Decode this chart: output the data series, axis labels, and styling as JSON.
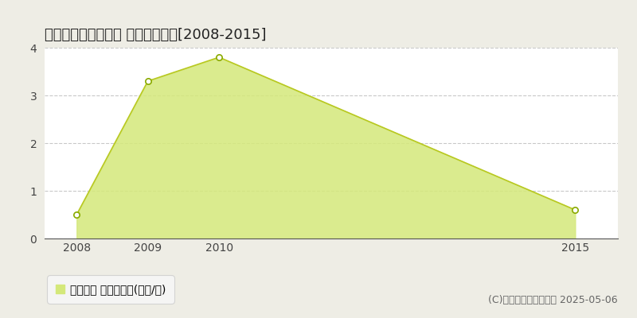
{
  "title": "薩摩郡さつま町二渡 土地価格推移[2008-2015]",
  "years": [
    2008,
    2009,
    2010,
    2015
  ],
  "values": [
    0.5,
    3.3,
    3.8,
    0.6
  ],
  "line_color": "#b8c820",
  "fill_color": "#d4e87a",
  "fill_alpha": 0.85,
  "marker_facecolor": "#ffffff",
  "marker_edgecolor": "#8aaa00",
  "marker_size": 28,
  "ylim": [
    0,
    4
  ],
  "yticks": [
    0,
    1,
    2,
    3,
    4
  ],
  "xlim_min": 2007.55,
  "xlim_max": 2015.6,
  "xticks": [
    2008,
    2009,
    2010,
    2015
  ],
  "background_color": "#eeede5",
  "plot_bg_color": "#ffffff",
  "legend_label": "土地価格 平均坪単価(万円/坪)",
  "copyright_text": "(C)土地価格ドットコム 2025-05-06",
  "title_fontsize": 13,
  "tick_fontsize": 10,
  "legend_fontsize": 10,
  "copyright_fontsize": 9,
  "grid_color": "#bbbbbb",
  "grid_alpha": 0.8
}
